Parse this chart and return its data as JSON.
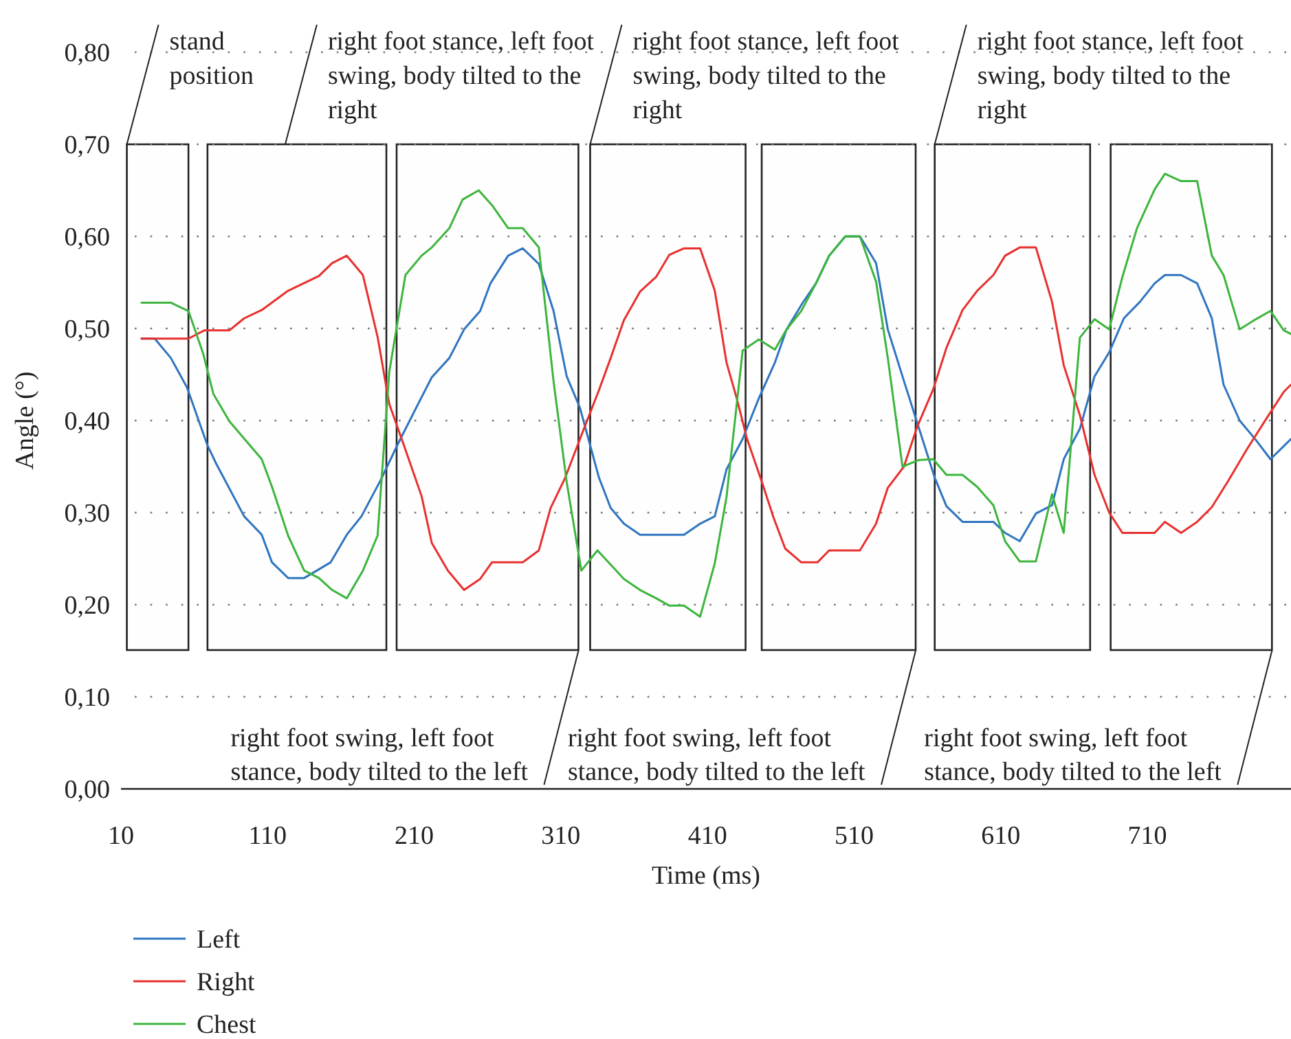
{
  "chart_data": {
    "type": "line",
    "xlabel": "Time (ms)",
    "ylabel": "Angle (°)",
    "xlim": [
      10,
      808
    ],
    "xticks": [
      10,
      110,
      210,
      310,
      410,
      510,
      610,
      710
    ],
    "ylim": [
      0,
      0.8
    ],
    "yticks": [
      {
        "value": 0,
        "label": "0,00"
      },
      {
        "value": 0.1,
        "label": "0,10"
      },
      {
        "value": 0.2,
        "label": "0,20"
      },
      {
        "value": 0.3,
        "label": "0,30"
      },
      {
        "value": 0.4,
        "label": "0,40"
      },
      {
        "value": 0.5,
        "label": "0,50"
      },
      {
        "value": 0.6,
        "label": "0,60"
      },
      {
        "value": 0.7,
        "label": "0,70"
      },
      {
        "value": 0.8,
        "label": "0,80"
      }
    ],
    "grid": "y",
    "legend": "bottom",
    "marker": "none",
    "line_style": "solid",
    "series": [
      {
        "name": "Left",
        "color": "#2f75c0",
        "x": [
          24,
          33,
          44,
          55,
          69,
          75,
          94,
          106,
          113,
          124,
          135,
          153,
          164,
          174,
          187,
          199,
          212,
          222,
          234,
          244,
          255,
          262,
          274,
          284,
          295,
          305,
          314,
          323,
          336,
          344,
          353,
          364,
          394,
          405,
          415,
          423,
          434,
          445,
          456,
          464,
          475,
          484,
          493,
          504,
          514,
          525,
          533,
          544,
          553,
          565,
          573,
          584,
          605,
          613,
          623,
          634,
          645,
          653,
          664,
          674,
          684,
          694,
          705,
          715,
          722,
          733,
          744,
          754,
          762,
          773,
          784,
          794,
          808
        ],
        "values": [
          0.489,
          0.489,
          0.468,
          0.436,
          0.373,
          0.353,
          0.296,
          0.276,
          0.246,
          0.229,
          0.229,
          0.246,
          0.276,
          0.296,
          0.335,
          0.375,
          0.416,
          0.447,
          0.468,
          0.499,
          0.519,
          0.549,
          0.579,
          0.587,
          0.57,
          0.519,
          0.448,
          0.414,
          0.338,
          0.305,
          0.288,
          0.276,
          0.276,
          0.288,
          0.296,
          0.347,
          0.38,
          0.424,
          0.463,
          0.499,
          0.528,
          0.549,
          0.579,
          0.6,
          0.6,
          0.571,
          0.499,
          0.443,
          0.398,
          0.338,
          0.307,
          0.29,
          0.29,
          0.278,
          0.269,
          0.299,
          0.308,
          0.358,
          0.391,
          0.448,
          0.474,
          0.511,
          0.529,
          0.549,
          0.558,
          0.558,
          0.549,
          0.511,
          0.439,
          0.4,
          0.379,
          0.358,
          0.38
        ]
      },
      {
        "name": "Right",
        "color": "#e8302e",
        "x": [
          24,
          56,
          67,
          84,
          94,
          106,
          124,
          145,
          154,
          164,
          175,
          185,
          193,
          203,
          215,
          222,
          233,
          244,
          255,
          263,
          284,
          295,
          303,
          313,
          325,
          336,
          344,
          353,
          364,
          375,
          384,
          394,
          405,
          415,
          423,
          430,
          437,
          447,
          455,
          463,
          474,
          485,
          493,
          514,
          525,
          533,
          544,
          553,
          564,
          573,
          584,
          594,
          605,
          613,
          623,
          634,
          645,
          653,
          664,
          674,
          684,
          693,
          715,
          722,
          733,
          744,
          754,
          765,
          778,
          792,
          803,
          808
        ],
        "values": [
          0.489,
          0.489,
          0.498,
          0.498,
          0.511,
          0.52,
          0.541,
          0.557,
          0.571,
          0.579,
          0.558,
          0.491,
          0.418,
          0.373,
          0.318,
          0.267,
          0.237,
          0.216,
          0.228,
          0.246,
          0.246,
          0.259,
          0.305,
          0.338,
          0.388,
          0.433,
          0.468,
          0.509,
          0.54,
          0.556,
          0.58,
          0.587,
          0.587,
          0.541,
          0.463,
          0.424,
          0.38,
          0.334,
          0.295,
          0.261,
          0.246,
          0.246,
          0.259,
          0.259,
          0.288,
          0.327,
          0.35,
          0.393,
          0.434,
          0.479,
          0.52,
          0.541,
          0.558,
          0.579,
          0.588,
          0.588,
          0.529,
          0.46,
          0.406,
          0.341,
          0.3,
          0.278,
          0.278,
          0.29,
          0.278,
          0.29,
          0.306,
          0.334,
          0.369,
          0.404,
          0.431,
          0.439
        ]
      },
      {
        "name": "Chest",
        "color": "#3db53d",
        "x": [
          24,
          44,
          56,
          66,
          73,
          84,
          106,
          113,
          124,
          135,
          145,
          154,
          164,
          175,
          185,
          193,
          204,
          215,
          222,
          234,
          243,
          254,
          263,
          274,
          284,
          295,
          305,
          314,
          324,
          335,
          353,
          364,
          375,
          384,
          394,
          405,
          415,
          423,
          434,
          445,
          456,
          464,
          474,
          484,
          493,
          504,
          514,
          525,
          533,
          543,
          554,
          564,
          573,
          584,
          594,
          605,
          613,
          623,
          634,
          645,
          653,
          664,
          674,
          684,
          693,
          703,
          715,
          722,
          733,
          744,
          754,
          762,
          773,
          784,
          794,
          803,
          808
        ],
        "values": [
          0.528,
          0.528,
          0.519,
          0.473,
          0.429,
          0.399,
          0.358,
          0.328,
          0.275,
          0.237,
          0.229,
          0.216,
          0.207,
          0.237,
          0.275,
          0.453,
          0.558,
          0.579,
          0.588,
          0.609,
          0.64,
          0.65,
          0.634,
          0.609,
          0.609,
          0.588,
          0.443,
          0.333,
          0.237,
          0.259,
          0.228,
          0.216,
          0.207,
          0.199,
          0.199,
          0.187,
          0.245,
          0.317,
          0.476,
          0.488,
          0.477,
          0.499,
          0.519,
          0.549,
          0.579,
          0.6,
          0.6,
          0.551,
          0.468,
          0.35,
          0.357,
          0.358,
          0.341,
          0.341,
          0.328,
          0.308,
          0.269,
          0.247,
          0.247,
          0.32,
          0.278,
          0.49,
          0.51,
          0.499,
          0.556,
          0.609,
          0.651,
          0.668,
          0.66,
          0.66,
          0.579,
          0.558,
          0.499,
          0.51,
          0.519,
          0.498,
          0.494
        ]
      }
    ],
    "bands": [
      {
        "axis": "x",
        "from": 14,
        "to": 56
      },
      {
        "axis": "x",
        "from": 69,
        "to": 191
      },
      {
        "axis": "x",
        "from": 198,
        "to": 322
      },
      {
        "axis": "x",
        "from": 330,
        "to": 436
      },
      {
        "axis": "x",
        "from": 447,
        "to": 552
      },
      {
        "axis": "x",
        "from": 565,
        "to": 671
      },
      {
        "axis": "x",
        "from": 685,
        "to": 795
      }
    ],
    "annotations": [
      {
        "text": "stand position",
        "x": 14,
        "y": 0.7
      },
      {
        "text": "right foot stance, left foot swing, body tilted to the right",
        "x": 122,
        "y": 0.7
      },
      {
        "text": "right foot stance, left foot swing, body tilted to the right",
        "x": 330,
        "y": 0.7
      },
      {
        "text": "right foot stance, left foot swing, body tilted to the right",
        "x": 565,
        "y": 0.7
      },
      {
        "text": "right foot swing, left foot stance, body tilted to the left",
        "x": 322,
        "y": 0.15
      },
      {
        "text": "right foot swing, left foot stance, body tilted to the left",
        "x": 552,
        "y": 0.15
      },
      {
        "text": "right foot swing, left foot stance, body tilted to the left",
        "x": 795,
        "y": 0.15
      }
    ]
  }
}
